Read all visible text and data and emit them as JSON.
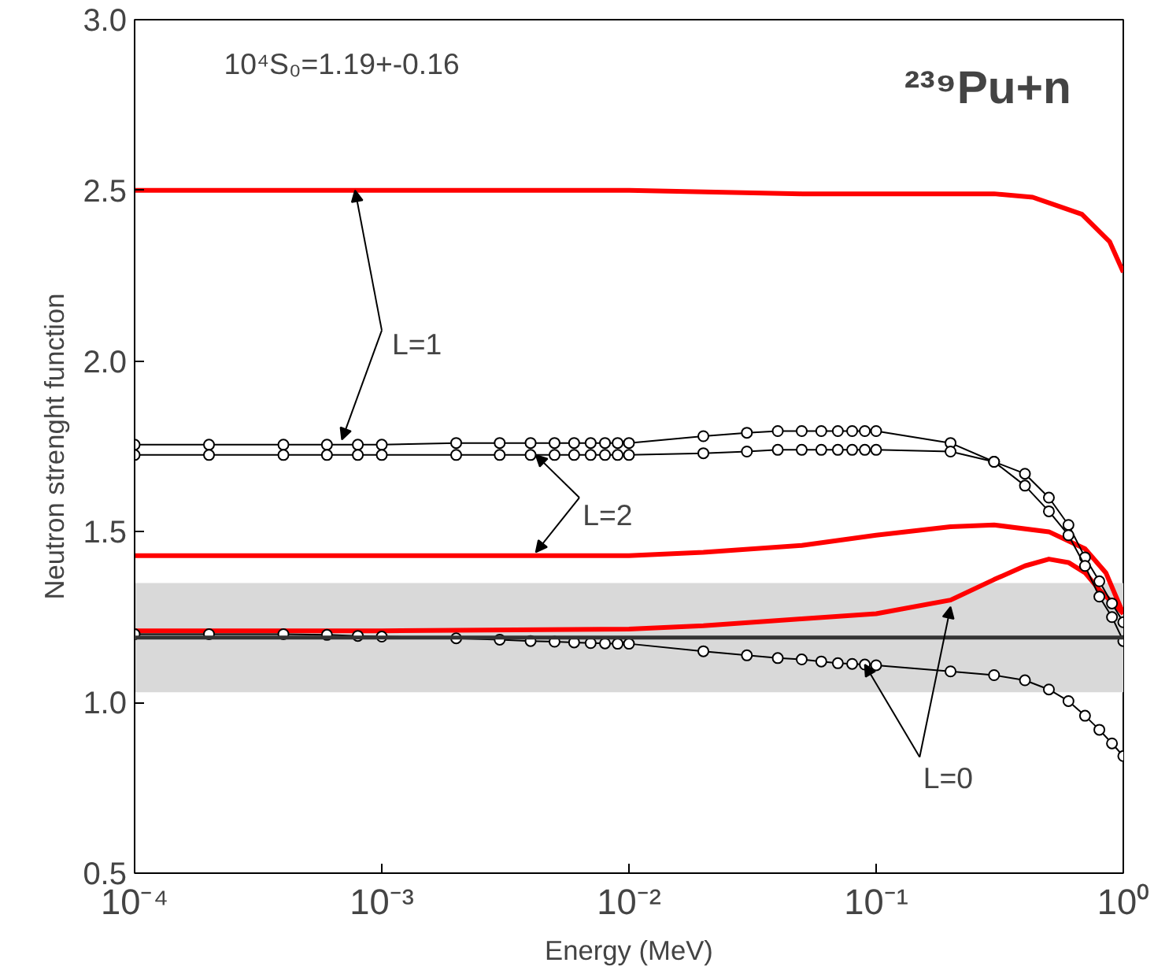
{
  "chart_data": {
    "type": "line",
    "xlabel": "Energy (MeV)",
    "ylabel": "Neutron strenght function",
    "log": "x",
    "grid": false,
    "xlim": [
      0.0001,
      1
    ],
    "ylim": [
      0.5,
      3.0
    ],
    "xticks": [
      {
        "value": 0.0001,
        "label": "10⁻⁴"
      },
      {
        "value": 0.001,
        "label": "10⁻³"
      },
      {
        "value": 0.01,
        "label": "10⁻²"
      },
      {
        "value": 0.1,
        "label": "10⁻¹"
      },
      {
        "value": 1,
        "label": "10⁰"
      }
    ],
    "yticks": [
      0.5,
      {
        "value": 1,
        "label": "1.0"
      },
      1.5,
      {
        "value": 2,
        "label": "2.0"
      },
      2.5,
      {
        "value": 3,
        "label": "3.0"
      }
    ],
    "series": [
      {
        "color": "#ff0000",
        "marker": "none",
        "x": [
          0.0001,
          0.001,
          0.01,
          0.05,
          0.1,
          0.3,
          0.43,
          0.68,
          0.88,
          1.0
        ],
        "values": [
          2.5,
          2.5,
          2.5,
          2.49,
          2.49,
          2.49,
          2.48,
          2.43,
          2.35,
          2.26
        ]
      },
      {
        "color": "#ff0000",
        "marker": "none",
        "x": [
          0.0001,
          0.001,
          0.01,
          0.02,
          0.05,
          0.1,
          0.2,
          0.3,
          0.5,
          0.7,
          0.85,
          1.0
        ],
        "values": [
          1.43,
          1.43,
          1.43,
          1.44,
          1.46,
          1.49,
          1.515,
          1.52,
          1.5,
          1.45,
          1.38,
          1.26
        ]
      },
      {
        "color": "#ff0000",
        "marker": "none",
        "x": [
          0.0001,
          0.001,
          0.01,
          0.02,
          0.05,
          0.1,
          0.2,
          0.3,
          0.4,
          0.5,
          0.6,
          0.7,
          0.8,
          1.0
        ],
        "values": [
          1.21,
          1.21,
          1.215,
          1.225,
          1.245,
          1.26,
          1.3,
          1.36,
          1.4,
          1.42,
          1.41,
          1.38,
          1.33,
          1.26
        ]
      },
      {
        "color": "#000000",
        "marker": "circle",
        "x": [
          0.0001,
          0.0002,
          0.0004,
          0.0006,
          0.0008,
          0.001,
          0.002,
          0.003,
          0.004,
          0.005,
          0.006,
          0.007,
          0.008,
          0.009,
          0.01,
          0.02,
          0.03,
          0.04,
          0.05,
          0.06,
          0.07,
          0.08,
          0.09,
          0.1,
          0.2,
          0.3,
          0.4,
          0.5,
          0.6,
          0.7,
          0.8,
          0.9,
          1.0
        ],
        "values": [
          1.755,
          1.755,
          1.755,
          1.755,
          1.755,
          1.755,
          1.76,
          1.76,
          1.76,
          1.76,
          1.76,
          1.76,
          1.76,
          1.76,
          1.76,
          1.78,
          1.79,
          1.795,
          1.795,
          1.795,
          1.795,
          1.795,
          1.795,
          1.795,
          1.76,
          1.705,
          1.67,
          1.6,
          1.52,
          1.425,
          1.355,
          1.29,
          1.235
        ]
      },
      {
        "color": "#000000",
        "marker": "circle",
        "x": [
          0.0001,
          0.0002,
          0.0004,
          0.0006,
          0.0008,
          0.001,
          0.002,
          0.003,
          0.004,
          0.005,
          0.006,
          0.007,
          0.008,
          0.009,
          0.01,
          0.02,
          0.03,
          0.04,
          0.05,
          0.06,
          0.07,
          0.08,
          0.09,
          0.1,
          0.2,
          0.3,
          0.4,
          0.5,
          0.6,
          0.7,
          0.8,
          0.9,
          1.0
        ],
        "values": [
          1.725,
          1.725,
          1.725,
          1.725,
          1.725,
          1.725,
          1.725,
          1.725,
          1.725,
          1.725,
          1.725,
          1.725,
          1.725,
          1.725,
          1.725,
          1.73,
          1.735,
          1.74,
          1.74,
          1.74,
          1.74,
          1.74,
          1.74,
          1.74,
          1.735,
          1.705,
          1.635,
          1.56,
          1.49,
          1.4,
          1.31,
          1.25,
          1.18
        ]
      },
      {
        "color": "#000000",
        "marker": "circle",
        "x": [
          0.0001,
          0.0002,
          0.0004,
          0.0006,
          0.0008,
          0.001,
          0.002,
          0.003,
          0.004,
          0.005,
          0.006,
          0.007,
          0.008,
          0.009,
          0.01,
          0.02,
          0.03,
          0.04,
          0.05,
          0.06,
          0.07,
          0.08,
          0.09,
          0.1,
          0.2,
          0.3,
          0.4,
          0.5,
          0.6,
          0.7,
          0.8,
          0.9,
          1.0
        ],
        "values": [
          1.2,
          1.2,
          1.2,
          1.198,
          1.195,
          1.193,
          1.188,
          1.184,
          1.18,
          1.178,
          1.176,
          1.174,
          1.173,
          1.172,
          1.172,
          1.15,
          1.138,
          1.13,
          1.126,
          1.12,
          1.115,
          1.113,
          1.111,
          1.109,
          1.091,
          1.08,
          1.065,
          1.038,
          1.004,
          0.961,
          0.92,
          0.88,
          0.843
        ]
      }
    ],
    "ref_lines": [
      {
        "axis": "y",
        "value": 1.19,
        "color": "#333333"
      }
    ],
    "bands": [
      {
        "axis": "y",
        "from": 1.03,
        "to": 1.35,
        "color": "#d9d9d9"
      }
    ],
    "annotations": [
      "10⁴S₀=1.19+-0.16",
      "²³⁹Pu+n",
      {
        "text": "L=1",
        "x": 0.00078,
        "y": 2.5
      },
      {
        "text": "L=2",
        "x": 0.0042,
        "y": 1.725
      },
      {
        "text": "L=0",
        "x": 0.09,
        "y": 1.111
      }
    ]
  }
}
